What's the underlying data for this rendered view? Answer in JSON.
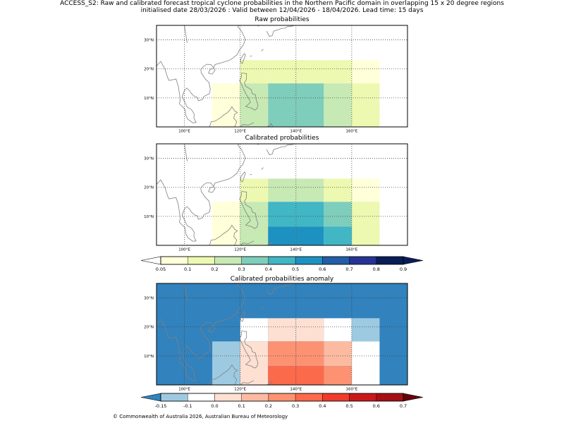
{
  "header": {
    "line1": "ACCESS_S2: Raw and calibrated forecast tropical cyclone probabilities in the Northern Pacific domain in overlapping 15 x 20 degree regions",
    "line2": "initialised date 28/03/2026 :  Valid between 12/04/2026 - 18/04/2026. Lead time: 15 days"
  },
  "footer": {
    "copyright": "© Commonwealth of Australia 2026, Australian Bureau of Meteorology"
  },
  "colors": {
    "prob": [
      "#ffffd9",
      "#edf8b1",
      "#c7e9b4",
      "#7fcdbb",
      "#41b6c4",
      "#1d91c0",
      "#225ea8",
      "#253494",
      "#081d58"
    ],
    "prob_under": "#ffffff",
    "anom": [
      "#9ecae1",
      "#ffffff",
      "#fee0d2",
      "#fcbba1",
      "#fc9272",
      "#fb6a4a",
      "#ef3b2c",
      "#cb181d",
      "#a50f15"
    ],
    "anom_under": "#3182bd",
    "anom_over": "#67000d",
    "coast": "#808080"
  },
  "chart_data": [
    {
      "type": "heatmap",
      "title": "Raw probabilities",
      "x_ticks": [
        "100°E",
        "120°E",
        "140°E",
        "160°E"
      ],
      "y_ticks": [
        "10°N",
        "20°N",
        "30°N"
      ],
      "lon_range": [
        90,
        180
      ],
      "lat_range": [
        0,
        35
      ],
      "cells": [
        {
          "lon": [
            110,
            120
          ],
          "lat": [
            0,
            15
          ],
          "value": 0.07
        },
        {
          "lon": [
            120,
            122
          ],
          "lat": [
            0,
            15
          ],
          "value": 0.07
        },
        {
          "lon": [
            120,
            130
          ],
          "lat": [
            15,
            23
          ],
          "value": 0.12
        },
        {
          "lon": [
            130,
            140
          ],
          "lat": [
            15,
            23
          ],
          "value": 0.12
        },
        {
          "lon": [
            140,
            150
          ],
          "lat": [
            15,
            23
          ],
          "value": 0.12
        },
        {
          "lon": [
            150,
            160
          ],
          "lat": [
            15,
            23
          ],
          "value": 0.12
        },
        {
          "lon": [
            160,
            170
          ],
          "lat": [
            15,
            23
          ],
          "value": 0.07
        },
        {
          "lon": [
            120,
            130
          ],
          "lat": [
            0,
            15
          ],
          "value": 0.22
        },
        {
          "lon": [
            130,
            140
          ],
          "lat": [
            0,
            15
          ],
          "value": 0.32
        },
        {
          "lon": [
            140,
            150
          ],
          "lat": [
            0,
            15
          ],
          "value": 0.32
        },
        {
          "lon": [
            150,
            160
          ],
          "lat": [
            0,
            15
          ],
          "value": 0.22
        },
        {
          "lon": [
            160,
            170
          ],
          "lat": [
            0,
            15
          ],
          "value": 0.12
        }
      ]
    },
    {
      "type": "heatmap",
      "title": "Calibrated probabilities",
      "x_ticks": [
        "100°E",
        "120°E",
        "140°E",
        "160°E"
      ],
      "y_ticks": [
        "10°N",
        "20°N",
        "30°N"
      ],
      "lon_range": [
        90,
        180
      ],
      "lat_range": [
        0,
        35
      ],
      "cells": [
        {
          "lon": [
            110,
            120
          ],
          "lat": [
            0,
            15
          ],
          "value": 0.07
        },
        {
          "lon": [
            120,
            122
          ],
          "lat": [
            0,
            15
          ],
          "value": 0.07
        },
        {
          "lon": [
            120,
            130
          ],
          "lat": [
            15,
            23
          ],
          "value": 0.12
        },
        {
          "lon": [
            130,
            140
          ],
          "lat": [
            15,
            23
          ],
          "value": 0.22
        },
        {
          "lon": [
            140,
            150
          ],
          "lat": [
            15,
            23
          ],
          "value": 0.22
        },
        {
          "lon": [
            150,
            160
          ],
          "lat": [
            15,
            23
          ],
          "value": 0.12
        },
        {
          "lon": [
            160,
            170
          ],
          "lat": [
            15,
            23
          ],
          "value": 0.07
        },
        {
          "lon": [
            120,
            130
          ],
          "lat": [
            0,
            15
          ],
          "value": 0.22
        },
        {
          "lon": [
            130,
            140
          ],
          "lat": [
            6.5,
            15
          ],
          "value": 0.42
        },
        {
          "lon": [
            140,
            150
          ],
          "lat": [
            6.5,
            15
          ],
          "value": 0.42
        },
        {
          "lon": [
            150,
            160
          ],
          "lat": [
            6.5,
            15
          ],
          "value": 0.32
        },
        {
          "lon": [
            160,
            170
          ],
          "lat": [
            0,
            15
          ],
          "value": 0.12
        },
        {
          "lon": [
            130,
            140
          ],
          "lat": [
            0,
            6.5
          ],
          "value": 0.52
        },
        {
          "lon": [
            140,
            150
          ],
          "lat": [
            0,
            6.5
          ],
          "value": 0.52
        },
        {
          "lon": [
            150,
            160
          ],
          "lat": [
            0,
            6.5
          ],
          "value": 0.42
        }
      ]
    },
    {
      "type": "heatmap",
      "title": "Calibrated probabilities anomaly",
      "x_ticks": [
        "100°E",
        "120°E",
        "140°E",
        "160°E"
      ],
      "y_ticks": [
        "10°N",
        "20°N",
        "30°N"
      ],
      "lon_range": [
        90,
        180
      ],
      "lat_range": [
        0,
        35
      ],
      "background_value": -0.2,
      "cells": [
        {
          "lon": [
            120,
            130
          ],
          "lat": [
            15,
            23
          ],
          "value": -0.05
        },
        {
          "lon": [
            130,
            140
          ],
          "lat": [
            15,
            23
          ],
          "value": 0.05
        },
        {
          "lon": [
            140,
            150
          ],
          "lat": [
            15,
            23
          ],
          "value": 0.05
        },
        {
          "lon": [
            150,
            160
          ],
          "lat": [
            15,
            23
          ],
          "value": -0.05
        },
        {
          "lon": [
            160,
            170
          ],
          "lat": [
            15,
            23
          ],
          "value": -0.12
        },
        {
          "lon": [
            110,
            120
          ],
          "lat": [
            0,
            15
          ],
          "value": -0.12
        },
        {
          "lon": [
            120,
            130
          ],
          "lat": [
            0,
            15
          ],
          "value": 0.05
        },
        {
          "lon": [
            130,
            140
          ],
          "lat": [
            6.5,
            15
          ],
          "value": 0.25
        },
        {
          "lon": [
            140,
            150
          ],
          "lat": [
            6.5,
            15
          ],
          "value": 0.25
        },
        {
          "lon": [
            150,
            160
          ],
          "lat": [
            6.5,
            15
          ],
          "value": 0.15
        },
        {
          "lon": [
            160,
            170
          ],
          "lat": [
            0,
            15
          ],
          "value": -0.05
        },
        {
          "lon": [
            130,
            140
          ],
          "lat": [
            0,
            6.5
          ],
          "value": 0.35
        },
        {
          "lon": [
            140,
            150
          ],
          "lat": [
            0,
            6.5
          ],
          "value": 0.35
        },
        {
          "lon": [
            150,
            160
          ],
          "lat": [
            0,
            6.5
          ],
          "value": 0.25
        }
      ]
    }
  ],
  "colorbars": {
    "prob": {
      "ticks": [
        "0.05",
        "0.1",
        "0.2",
        "0.3",
        "0.4",
        "0.5",
        "0.6",
        "0.7",
        "0.8",
        "0.9"
      ],
      "bounds": [
        0.05,
        0.1,
        0.2,
        0.3,
        0.4,
        0.5,
        0.6,
        0.7,
        0.8,
        0.9
      ]
    },
    "anom": {
      "ticks": [
        "-0.15",
        "-0.1",
        "0.0",
        "0.1",
        "0.2",
        "0.3",
        "0.4",
        "0.5",
        "0.6",
        "0.7"
      ],
      "bounds": [
        -0.15,
        -0.1,
        0.0,
        0.1,
        0.2,
        0.3,
        0.4,
        0.5,
        0.6,
        0.7
      ]
    }
  }
}
